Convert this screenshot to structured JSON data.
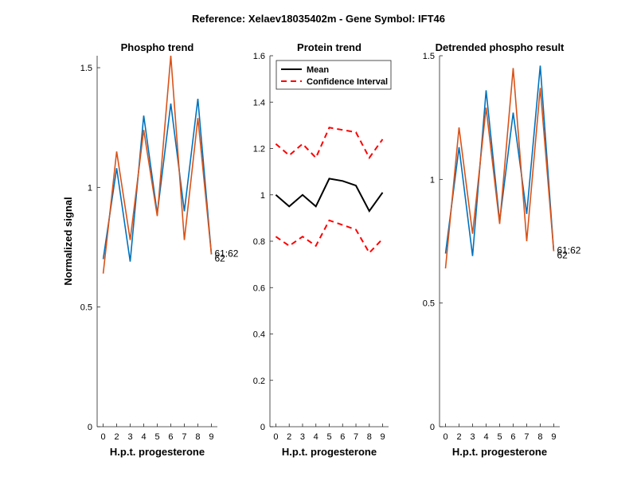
{
  "figure_title": "Reference:  Xelaev18035402m - Gene Symbol:  IFT46",
  "chart_data": [
    {
      "type": "line",
      "title": "Phospho trend",
      "xlabel": "H.p.t. progesterone",
      "ylabel": "Normalized signal",
      "categories": [
        "0",
        "2",
        "3",
        "4",
        "5",
        "6",
        "7",
        "8",
        "9"
      ],
      "ylim": [
        0,
        1.55
      ],
      "yticks": [
        "0",
        "0.5",
        "1",
        "1.5"
      ],
      "series": [
        {
          "name": "61",
          "color": "#0072BD",
          "values": [
            0.7,
            1.08,
            0.69,
            1.3,
            0.89,
            1.35,
            0.9,
            1.37,
            0.72
          ]
        },
        {
          "name": "62",
          "color": "#D95319",
          "values": [
            0.64,
            1.15,
            0.78,
            1.24,
            0.88,
            1.55,
            0.78,
            1.29,
            0.72
          ]
        }
      ],
      "annotations": [
        "61:62",
        "62"
      ]
    },
    {
      "type": "line",
      "title": "Protein trend",
      "xlabel": "H.p.t. progesterone",
      "categories": [
        "0",
        "2",
        "3",
        "4",
        "5",
        "6",
        "7",
        "8",
        "9"
      ],
      "ylim": [
        0,
        1.6
      ],
      "yticks": [
        "0",
        "0.2",
        "0.4",
        "0.6",
        "0.8",
        "1",
        "1.2",
        "1.4",
        "1.6"
      ],
      "legend": {
        "placement": "top-left",
        "entries": [
          "Mean",
          "Confidence Interval"
        ]
      },
      "series": [
        {
          "name": "Mean",
          "color": "#000000",
          "style": "solid",
          "values": [
            1.0,
            0.95,
            1.0,
            0.95,
            1.07,
            1.06,
            1.04,
            0.93,
            1.01
          ]
        },
        {
          "name": "Confidence Interval",
          "color": "#FF0000",
          "style": "dashed",
          "values": [
            1.22,
            1.17,
            1.22,
            1.16,
            1.29,
            1.28,
            1.27,
            1.16,
            1.24
          ]
        },
        {
          "name": "Confidence Interval (lower)",
          "color": "#FF0000",
          "style": "dashed",
          "values": [
            0.82,
            0.78,
            0.82,
            0.78,
            0.89,
            0.87,
            0.85,
            0.75,
            0.81
          ]
        }
      ]
    },
    {
      "type": "line",
      "title": "Detrended phospho result",
      "xlabel": "H.p.t. progesterone",
      "categories": [
        "0",
        "2",
        "3",
        "4",
        "5",
        "6",
        "7",
        "8",
        "9"
      ],
      "ylim": [
        0,
        1.5
      ],
      "yticks": [
        "0",
        "0.5",
        "1",
        "1.5"
      ],
      "series": [
        {
          "name": "61",
          "color": "#0072BD",
          "values": [
            0.7,
            1.13,
            0.69,
            1.36,
            0.83,
            1.27,
            0.86,
            1.46,
            0.71
          ]
        },
        {
          "name": "62",
          "color": "#D95319",
          "values": [
            0.64,
            1.21,
            0.78,
            1.29,
            0.82,
            1.45,
            0.75,
            1.37,
            0.71
          ]
        }
      ],
      "annotations": [
        "61:62",
        "62"
      ]
    }
  ]
}
